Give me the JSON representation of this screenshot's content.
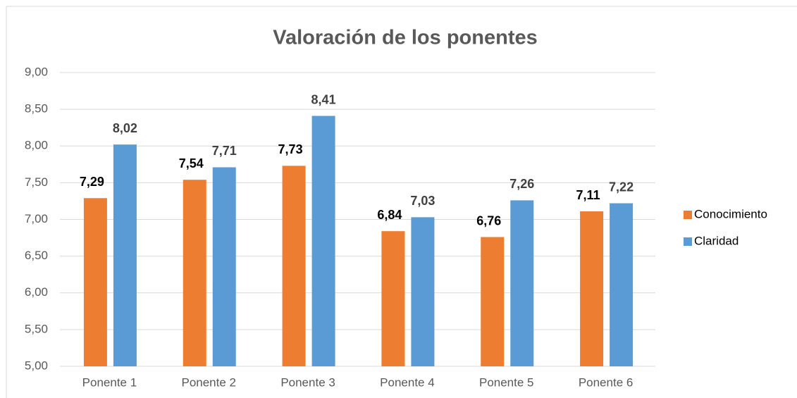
{
  "chart_data": {
    "type": "bar",
    "title": "Valoración de los ponentes",
    "categories": [
      "Ponente 1",
      "Ponente 2",
      "Ponente 3",
      "Ponente 4",
      "Ponente 5",
      "Ponente 6"
    ],
    "series": [
      {
        "name": "Conocimiento",
        "color": "#ed7d31",
        "values": [
          7.29,
          7.54,
          7.73,
          6.84,
          6.76,
          7.11
        ],
        "value_labels": [
          "7,29",
          "7,54",
          "7,73",
          "6,84",
          "6,76",
          "7,11"
        ]
      },
      {
        "name": "Claridad",
        "color": "#5b9bd5",
        "values": [
          8.02,
          7.71,
          8.41,
          7.03,
          7.26,
          7.22
        ],
        "value_labels": [
          "8,02",
          "7,71",
          "8,41",
          "7,03",
          "7,26",
          "7,22"
        ]
      }
    ],
    "ylim": [
      5,
      9
    ],
    "yticks": [
      {
        "value": 5,
        "label": "5,00"
      },
      {
        "value": 5.5,
        "label": "5,50"
      },
      {
        "value": 6,
        "label": "6,00"
      },
      {
        "value": 6.5,
        "label": "6,50"
      },
      {
        "value": 7,
        "label": "7,00"
      },
      {
        "value": 7.5,
        "label": "7,50"
      },
      {
        "value": 8,
        "label": "8,00"
      },
      {
        "value": 8.5,
        "label": "8,50"
      },
      {
        "value": 9,
        "label": "9,00"
      }
    ],
    "grid": true,
    "legend": "right"
  }
}
